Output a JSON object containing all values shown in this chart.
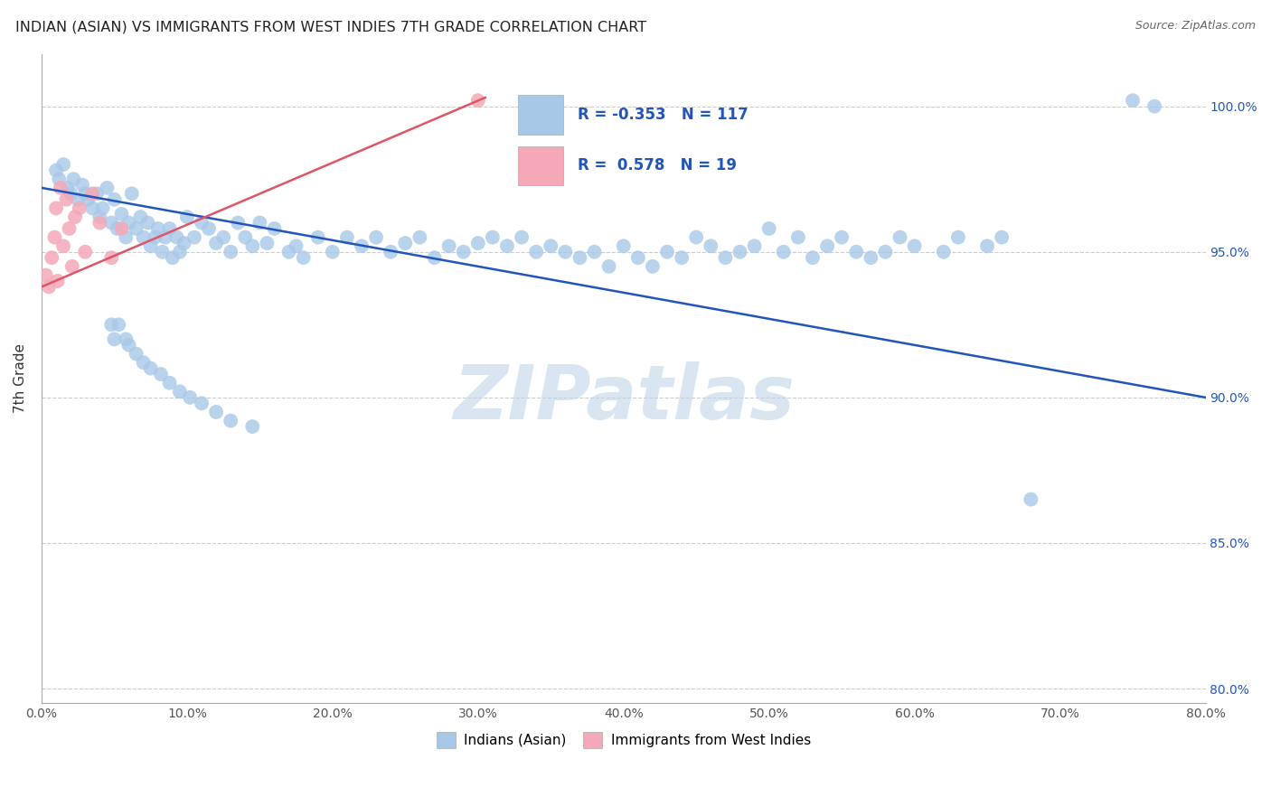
{
  "title": "INDIAN (ASIAN) VS IMMIGRANTS FROM WEST INDIES 7TH GRADE CORRELATION CHART",
  "source": "Source: ZipAtlas.com",
  "ylabel": "7th Grade",
  "y_ticks": [
    80.0,
    85.0,
    90.0,
    95.0,
    100.0
  ],
  "x_min": 0.0,
  "x_max": 80.0,
  "y_min": 79.5,
  "y_max": 101.8,
  "legend_blue_label": "Indians (Asian)",
  "legend_pink_label": "Immigrants from West Indies",
  "R_blue": -0.353,
  "N_blue": 117,
  "R_pink": 0.578,
  "N_pink": 19,
  "blue_color": "#a8c8e8",
  "pink_color": "#f4a8b8",
  "trendline_blue_color": "#2255bb",
  "trendline_pink_color": "#dd5566",
  "background_color": "#ffffff",
  "grid_color": "#cccccc",
  "watermark": "ZIPatlas",
  "watermark_color": "#c0d4e8",
  "blue_x": [
    1.0,
    1.2,
    1.5,
    1.8,
    2.0,
    2.2,
    2.5,
    2.8,
    3.0,
    3.2,
    3.5,
    3.8,
    4.0,
    4.2,
    4.5,
    4.8,
    5.0,
    5.2,
    5.5,
    5.8,
    6.0,
    6.2,
    6.5,
    6.8,
    7.0,
    7.3,
    7.5,
    7.8,
    8.0,
    8.3,
    8.5,
    8.8,
    9.0,
    9.3,
    9.5,
    9.8,
    10.0,
    10.5,
    11.0,
    11.5,
    12.0,
    12.5,
    13.0,
    13.5,
    14.0,
    14.5,
    15.0,
    15.5,
    16.0,
    17.0,
    17.5,
    18.0,
    19.0,
    20.0,
    21.0,
    22.0,
    23.0,
    24.0,
    25.0,
    26.0,
    27.0,
    28.0,
    29.0,
    30.0,
    31.0,
    32.0,
    33.0,
    34.0,
    35.0,
    36.0,
    37.0,
    38.0,
    39.0,
    40.0,
    41.0,
    42.0,
    43.0,
    44.0,
    45.0,
    46.0,
    47.0,
    48.0,
    49.0,
    50.0,
    51.0,
    52.0,
    53.0,
    54.0,
    55.0,
    56.0,
    57.0,
    58.0,
    59.0,
    60.0,
    62.0,
    63.0,
    65.0,
    66.0,
    68.0,
    75.0,
    76.5,
    4.8,
    5.0,
    5.3,
    5.8,
    6.0,
    6.5,
    7.0,
    7.5,
    8.2,
    8.8,
    9.5,
    10.2,
    11.0,
    12.0,
    13.0,
    14.5
  ],
  "blue_y": [
    97.8,
    97.5,
    98.0,
    97.2,
    97.0,
    97.5,
    96.8,
    97.3,
    97.0,
    96.8,
    96.5,
    97.0,
    96.2,
    96.5,
    97.2,
    96.0,
    96.8,
    95.8,
    96.3,
    95.5,
    96.0,
    97.0,
    95.8,
    96.2,
    95.5,
    96.0,
    95.2,
    95.5,
    95.8,
    95.0,
    95.5,
    95.8,
    94.8,
    95.5,
    95.0,
    95.3,
    96.2,
    95.5,
    96.0,
    95.8,
    95.3,
    95.5,
    95.0,
    96.0,
    95.5,
    95.2,
    96.0,
    95.3,
    95.8,
    95.0,
    95.2,
    94.8,
    95.5,
    95.0,
    95.5,
    95.2,
    95.5,
    95.0,
    95.3,
    95.5,
    94.8,
    95.2,
    95.0,
    95.3,
    95.5,
    95.2,
    95.5,
    95.0,
    95.2,
    95.0,
    94.8,
    95.0,
    94.5,
    95.2,
    94.8,
    94.5,
    95.0,
    94.8,
    95.5,
    95.2,
    94.8,
    95.0,
    95.2,
    95.8,
    95.0,
    95.5,
    94.8,
    95.2,
    95.5,
    95.0,
    94.8,
    95.0,
    95.5,
    95.2,
    95.0,
    95.5,
    95.2,
    95.5,
    86.5,
    100.2,
    100.0,
    92.5,
    92.0,
    92.5,
    92.0,
    91.8,
    91.5,
    91.2,
    91.0,
    90.8,
    90.5,
    90.2,
    90.0,
    89.8,
    89.5,
    89.2,
    89.0
  ],
  "pink_x": [
    0.3,
    0.5,
    0.7,
    0.9,
    1.0,
    1.1,
    1.3,
    1.5,
    1.7,
    1.9,
    2.1,
    2.3,
    2.6,
    3.0,
    3.5,
    4.0,
    4.8,
    5.5,
    30.0
  ],
  "pink_y": [
    94.2,
    93.8,
    94.8,
    95.5,
    96.5,
    94.0,
    97.2,
    95.2,
    96.8,
    95.8,
    94.5,
    96.2,
    96.5,
    95.0,
    97.0,
    96.0,
    94.8,
    95.8,
    100.2
  ],
  "trendline_blue_x0": 0.0,
  "trendline_blue_y0": 97.2,
  "trendline_blue_x1": 80.0,
  "trendline_blue_y1": 90.0,
  "trendline_pink_x0": 0.0,
  "trendline_pink_y0": 93.8,
  "trendline_pink_x1": 30.5,
  "trendline_pink_y1": 100.3
}
